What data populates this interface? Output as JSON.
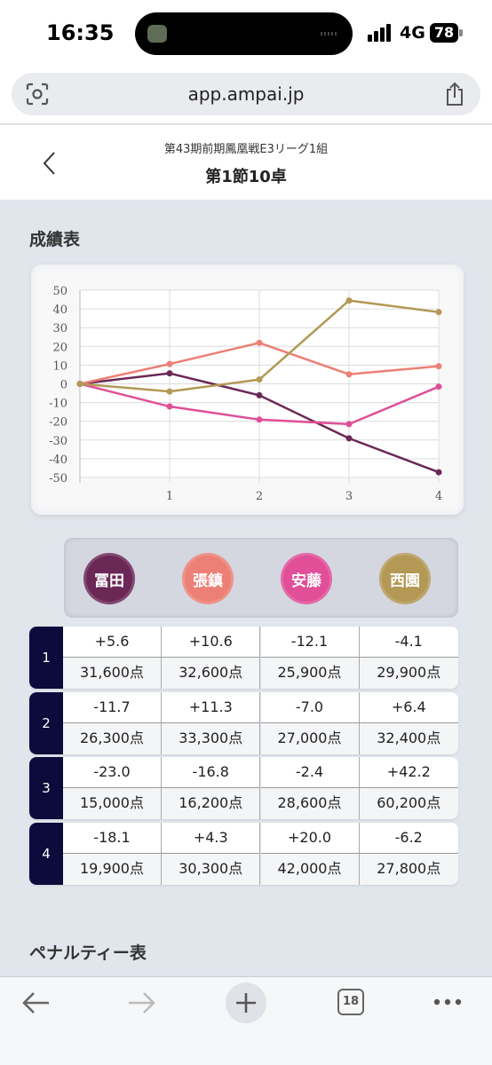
{
  "status_bar": {
    "time": "16:35",
    "network": "4G",
    "battery": "78"
  },
  "browser": {
    "url": "app.ampai.jp",
    "tab_count": "18"
  },
  "header": {
    "subtitle": "第43期前期鳳凰戦E3リーグ1組",
    "title": "第1節10卓"
  },
  "results_title": "成績表",
  "penalty_title": "ペナルティー表",
  "chart_data": {
    "type": "line",
    "x": [
      0,
      1,
      2,
      3,
      4
    ],
    "x_tick_labels": [
      "1",
      "2",
      "3",
      "4"
    ],
    "ylim": [
      -50,
      50
    ],
    "y_ticks": [
      50,
      40,
      30,
      20,
      10,
      0,
      -10,
      -20,
      -30,
      -40,
      -50
    ],
    "grid": true,
    "series": [
      {
        "name": "冨田",
        "color": "#6b2857",
        "values": [
          0,
          5.6,
          -6.1,
          -29.1,
          -47.2
        ]
      },
      {
        "name": "張鎮",
        "color": "#ec8076",
        "values": [
          0,
          10.6,
          21.9,
          5.1,
          9.4
        ]
      },
      {
        "name": "安藤",
        "color": "#e04f97",
        "values": [
          0,
          -12.1,
          -19.1,
          -21.5,
          -1.5
        ]
      },
      {
        "name": "西園",
        "color": "#b39856",
        "values": [
          0,
          -4.1,
          2.3,
          44.5,
          38.3
        ]
      }
    ]
  },
  "players": [
    {
      "name": "冨田",
      "color": "#6b2857"
    },
    {
      "name": "張鎮",
      "color": "#ec8076"
    },
    {
      "name": "安藤",
      "color": "#e04f97"
    },
    {
      "name": "西園",
      "color": "#b39856"
    }
  ],
  "rounds": [
    {
      "num": "1",
      "diffs": [
        "+5.6",
        "+10.6",
        "-12.1",
        "-4.1"
      ],
      "points": [
        "31,600点",
        "32,600点",
        "25,900点",
        "29,900点"
      ]
    },
    {
      "num": "2",
      "diffs": [
        "-11.7",
        "+11.3",
        "-7.0",
        "+6.4"
      ],
      "points": [
        "26,300点",
        "33,300点",
        "27,000点",
        "32,400点"
      ]
    },
    {
      "num": "3",
      "diffs": [
        "-23.0",
        "-16.8",
        "-2.4",
        "+42.2"
      ],
      "points": [
        "15,000点",
        "16,200点",
        "28,600点",
        "60,200点"
      ]
    },
    {
      "num": "4",
      "diffs": [
        "-18.1",
        "+4.3",
        "+20.0",
        "-6.2"
      ],
      "points": [
        "19,900点",
        "30,300点",
        "42,000点",
        "27,800点"
      ]
    }
  ]
}
